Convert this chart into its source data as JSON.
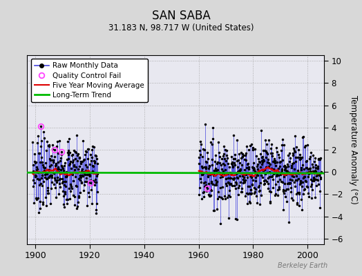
{
  "title": "SAN SABA",
  "subtitle": "31.183 N, 98.717 W (United States)",
  "ylabel": "Temperature Anomaly (°C)",
  "watermark": "Berkeley Earth",
  "xlim": [
    1897,
    2006
  ],
  "ylim": [
    -6.5,
    10.5
  ],
  "yticks": [
    -6,
    -4,
    -2,
    0,
    2,
    4,
    6,
    8,
    10
  ],
  "xticks": [
    1900,
    1920,
    1940,
    1960,
    1980,
    2000
  ],
  "segment1_start": 1899,
  "segment1_end": 1923,
  "segment2_start": 1960,
  "segment2_end": 2005,
  "bg_color": "#d8d8d8",
  "plot_bg_color": "#e8e8f0",
  "raw_color": "#4444dd",
  "ma_color": "#dd0000",
  "trend_color": "#00bb00",
  "qc_color": "#ff44ff",
  "seed": 7
}
